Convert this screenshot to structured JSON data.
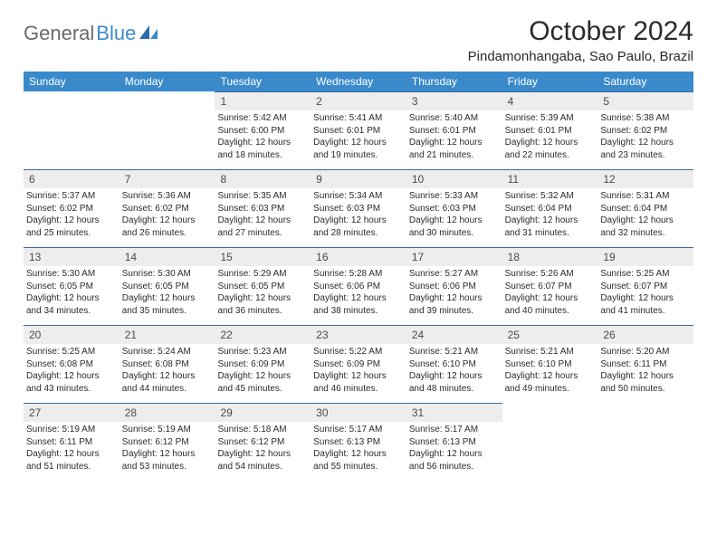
{
  "logo": {
    "text_gray": "General",
    "text_blue": "Blue"
  },
  "title": "October 2024",
  "location": "Pindamonhangaba, Sao Paulo, Brazil",
  "weekdays": [
    "Sunday",
    "Monday",
    "Tuesday",
    "Wednesday",
    "Thursday",
    "Friday",
    "Saturday"
  ],
  "colors": {
    "header_bg": "#3a8acb",
    "header_text": "#ffffff",
    "daynum_bg": "#ededed",
    "rule": "#3a6a9a",
    "body_text": "#2b2b2b",
    "logo_gray": "#6a6a6a"
  },
  "weeks": [
    [
      {
        "n": "",
        "sunrise": "",
        "sunset": "",
        "daylight": ""
      },
      {
        "n": "",
        "sunrise": "",
        "sunset": "",
        "daylight": ""
      },
      {
        "n": "1",
        "sunrise": "Sunrise: 5:42 AM",
        "sunset": "Sunset: 6:00 PM",
        "daylight": "Daylight: 12 hours and 18 minutes."
      },
      {
        "n": "2",
        "sunrise": "Sunrise: 5:41 AM",
        "sunset": "Sunset: 6:01 PM",
        "daylight": "Daylight: 12 hours and 19 minutes."
      },
      {
        "n": "3",
        "sunrise": "Sunrise: 5:40 AM",
        "sunset": "Sunset: 6:01 PM",
        "daylight": "Daylight: 12 hours and 21 minutes."
      },
      {
        "n": "4",
        "sunrise": "Sunrise: 5:39 AM",
        "sunset": "Sunset: 6:01 PM",
        "daylight": "Daylight: 12 hours and 22 minutes."
      },
      {
        "n": "5",
        "sunrise": "Sunrise: 5:38 AM",
        "sunset": "Sunset: 6:02 PM",
        "daylight": "Daylight: 12 hours and 23 minutes."
      }
    ],
    [
      {
        "n": "6",
        "sunrise": "Sunrise: 5:37 AM",
        "sunset": "Sunset: 6:02 PM",
        "daylight": "Daylight: 12 hours and 25 minutes."
      },
      {
        "n": "7",
        "sunrise": "Sunrise: 5:36 AM",
        "sunset": "Sunset: 6:02 PM",
        "daylight": "Daylight: 12 hours and 26 minutes."
      },
      {
        "n": "8",
        "sunrise": "Sunrise: 5:35 AM",
        "sunset": "Sunset: 6:03 PM",
        "daylight": "Daylight: 12 hours and 27 minutes."
      },
      {
        "n": "9",
        "sunrise": "Sunrise: 5:34 AM",
        "sunset": "Sunset: 6:03 PM",
        "daylight": "Daylight: 12 hours and 28 minutes."
      },
      {
        "n": "10",
        "sunrise": "Sunrise: 5:33 AM",
        "sunset": "Sunset: 6:03 PM",
        "daylight": "Daylight: 12 hours and 30 minutes."
      },
      {
        "n": "11",
        "sunrise": "Sunrise: 5:32 AM",
        "sunset": "Sunset: 6:04 PM",
        "daylight": "Daylight: 12 hours and 31 minutes."
      },
      {
        "n": "12",
        "sunrise": "Sunrise: 5:31 AM",
        "sunset": "Sunset: 6:04 PM",
        "daylight": "Daylight: 12 hours and 32 minutes."
      }
    ],
    [
      {
        "n": "13",
        "sunrise": "Sunrise: 5:30 AM",
        "sunset": "Sunset: 6:05 PM",
        "daylight": "Daylight: 12 hours and 34 minutes."
      },
      {
        "n": "14",
        "sunrise": "Sunrise: 5:30 AM",
        "sunset": "Sunset: 6:05 PM",
        "daylight": "Daylight: 12 hours and 35 minutes."
      },
      {
        "n": "15",
        "sunrise": "Sunrise: 5:29 AM",
        "sunset": "Sunset: 6:05 PM",
        "daylight": "Daylight: 12 hours and 36 minutes."
      },
      {
        "n": "16",
        "sunrise": "Sunrise: 5:28 AM",
        "sunset": "Sunset: 6:06 PM",
        "daylight": "Daylight: 12 hours and 38 minutes."
      },
      {
        "n": "17",
        "sunrise": "Sunrise: 5:27 AM",
        "sunset": "Sunset: 6:06 PM",
        "daylight": "Daylight: 12 hours and 39 minutes."
      },
      {
        "n": "18",
        "sunrise": "Sunrise: 5:26 AM",
        "sunset": "Sunset: 6:07 PM",
        "daylight": "Daylight: 12 hours and 40 minutes."
      },
      {
        "n": "19",
        "sunrise": "Sunrise: 5:25 AM",
        "sunset": "Sunset: 6:07 PM",
        "daylight": "Daylight: 12 hours and 41 minutes."
      }
    ],
    [
      {
        "n": "20",
        "sunrise": "Sunrise: 5:25 AM",
        "sunset": "Sunset: 6:08 PM",
        "daylight": "Daylight: 12 hours and 43 minutes."
      },
      {
        "n": "21",
        "sunrise": "Sunrise: 5:24 AM",
        "sunset": "Sunset: 6:08 PM",
        "daylight": "Daylight: 12 hours and 44 minutes."
      },
      {
        "n": "22",
        "sunrise": "Sunrise: 5:23 AM",
        "sunset": "Sunset: 6:09 PM",
        "daylight": "Daylight: 12 hours and 45 minutes."
      },
      {
        "n": "23",
        "sunrise": "Sunrise: 5:22 AM",
        "sunset": "Sunset: 6:09 PM",
        "daylight": "Daylight: 12 hours and 46 minutes."
      },
      {
        "n": "24",
        "sunrise": "Sunrise: 5:21 AM",
        "sunset": "Sunset: 6:10 PM",
        "daylight": "Daylight: 12 hours and 48 minutes."
      },
      {
        "n": "25",
        "sunrise": "Sunrise: 5:21 AM",
        "sunset": "Sunset: 6:10 PM",
        "daylight": "Daylight: 12 hours and 49 minutes."
      },
      {
        "n": "26",
        "sunrise": "Sunrise: 5:20 AM",
        "sunset": "Sunset: 6:11 PM",
        "daylight": "Daylight: 12 hours and 50 minutes."
      }
    ],
    [
      {
        "n": "27",
        "sunrise": "Sunrise: 5:19 AM",
        "sunset": "Sunset: 6:11 PM",
        "daylight": "Daylight: 12 hours and 51 minutes."
      },
      {
        "n": "28",
        "sunrise": "Sunrise: 5:19 AM",
        "sunset": "Sunset: 6:12 PM",
        "daylight": "Daylight: 12 hours and 53 minutes."
      },
      {
        "n": "29",
        "sunrise": "Sunrise: 5:18 AM",
        "sunset": "Sunset: 6:12 PM",
        "daylight": "Daylight: 12 hours and 54 minutes."
      },
      {
        "n": "30",
        "sunrise": "Sunrise: 5:17 AM",
        "sunset": "Sunset: 6:13 PM",
        "daylight": "Daylight: 12 hours and 55 minutes."
      },
      {
        "n": "31",
        "sunrise": "Sunrise: 5:17 AM",
        "sunset": "Sunset: 6:13 PM",
        "daylight": "Daylight: 12 hours and 56 minutes."
      },
      {
        "n": "",
        "sunrise": "",
        "sunset": "",
        "daylight": ""
      },
      {
        "n": "",
        "sunrise": "",
        "sunset": "",
        "daylight": ""
      }
    ]
  ]
}
